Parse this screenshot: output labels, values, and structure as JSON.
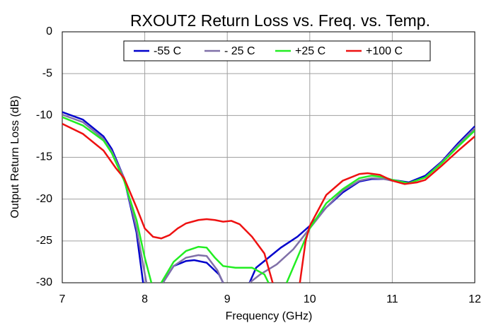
{
  "chart_data": {
    "type": "line",
    "title": "RXOUT2 Return Loss vs. Freq. vs. Temp.",
    "x_label": "Frequency (GHz)",
    "y_label": "Output Return Loss (dB)",
    "xlim": [
      7,
      12
    ],
    "xticks": [
      7,
      8,
      9,
      10,
      11,
      12
    ],
    "ylim": [
      -30,
      0
    ],
    "yticks": [
      0,
      -5,
      -10,
      -15,
      -20,
      -25,
      -30
    ],
    "grid": true,
    "legend": "top",
    "series": [
      {
        "name": "-55 C",
        "color": "#0000cc",
        "x": [
          7,
          7.25,
          7.5,
          7.6,
          7.75,
          7.9,
          7.98,
          8.1,
          8.22,
          8.35,
          8.5,
          8.6,
          8.75,
          8.9,
          8.95,
          9.1,
          9.27,
          9.35,
          9.5,
          9.65,
          9.85,
          10,
          10.2,
          10.4,
          10.6,
          10.75,
          10.9,
          11,
          11.2,
          11.4,
          11.6,
          11.8,
          12
        ],
        "values": [
          -9.6,
          -10.5,
          -12.5,
          -14,
          -17.5,
          -24,
          -30,
          null,
          -30,
          -28,
          -27.4,
          -27.3,
          -27.6,
          -29,
          -30,
          null,
          -30,
          -28.2,
          -27,
          -25.8,
          -24.5,
          -23.2,
          -21,
          -19.2,
          -17.9,
          -17.6,
          -17.6,
          -17.7,
          -18,
          -17.2,
          -15.5,
          -13.3,
          -11.3
        ]
      },
      {
        "name": "- 25 C",
        "color": "#8070a8",
        "x": [
          7,
          7.25,
          7.5,
          7.6,
          7.75,
          7.9,
          8.02,
          8.1,
          8.22,
          8.35,
          8.5,
          8.65,
          8.75,
          8.88,
          8.95,
          9.1,
          9.27,
          9.4,
          9.6,
          9.8,
          10,
          10.2,
          10.4,
          10.6,
          10.75,
          10.9,
          11,
          11.2,
          11.4,
          11.6,
          11.8,
          12
        ],
        "values": [
          -9.9,
          -10.8,
          -12.8,
          -14.3,
          -17.5,
          -23.5,
          -30,
          null,
          -30,
          -28,
          -27,
          -26.7,
          -26.8,
          -28.5,
          -30,
          null,
          -30,
          -29,
          -27.8,
          -26,
          -23.5,
          -21,
          -19,
          -17.8,
          -17.5,
          -17.6,
          -17.8,
          -18.1,
          -17.4,
          -15.6,
          -13.5,
          -11.5
        ]
      },
      {
        "name": "+25 C",
        "color": "#22ee22",
        "x": [
          7,
          7.25,
          7.5,
          7.6,
          7.75,
          7.9,
          8,
          8.08,
          8.14,
          8.2,
          8.35,
          8.5,
          8.65,
          8.75,
          8.85,
          8.95,
          9.1,
          9.3,
          9.45,
          9.5,
          9.6,
          9.72,
          9.85,
          10,
          10.2,
          10.4,
          10.6,
          10.75,
          10.9,
          11,
          11.2,
          11.4,
          11.6,
          11.8,
          12
        ],
        "values": [
          -10.2,
          -11.2,
          -13,
          -14.5,
          -17.8,
          -22.5,
          -27,
          -30,
          null,
          -30,
          -27.5,
          -26.2,
          -25.7,
          -25.8,
          -27,
          -28,
          -28.2,
          -28.2,
          -29,
          -30,
          null,
          -30,
          -27,
          -23.5,
          -20.5,
          -18.8,
          -17.5,
          -17.2,
          -17.4,
          -17.7,
          -18.1,
          -17.4,
          -15.7,
          -13.7,
          -11.8
        ]
      },
      {
        "name": "+100 C",
        "color": "#ee1111",
        "x": [
          7,
          7.25,
          7.5,
          7.65,
          7.75,
          7.9,
          8,
          8.1,
          8.2,
          8.3,
          8.4,
          8.5,
          8.65,
          8.75,
          8.85,
          8.95,
          9.05,
          9.15,
          9.3,
          9.45,
          9.55,
          9.7,
          9.88,
          9.95,
          10,
          10.2,
          10.4,
          10.6,
          10.7,
          10.85,
          11,
          11.15,
          11.3,
          11.4,
          11.6,
          11.8,
          12
        ],
        "values": [
          -11,
          -12.2,
          -14.2,
          -16.3,
          -17.5,
          -21,
          -23.5,
          -24.5,
          -24.7,
          -24.3,
          -23.5,
          -22.9,
          -22.5,
          -22.4,
          -22.5,
          -22.7,
          -22.6,
          -23,
          -24.5,
          -26.5,
          -30,
          null,
          -30,
          -25,
          -23.2,
          -19.5,
          -17.8,
          -17,
          -16.9,
          -17.1,
          -17.8,
          -18.2,
          -18,
          -17.7,
          -16,
          -14.2,
          -12.5
        ]
      }
    ]
  }
}
